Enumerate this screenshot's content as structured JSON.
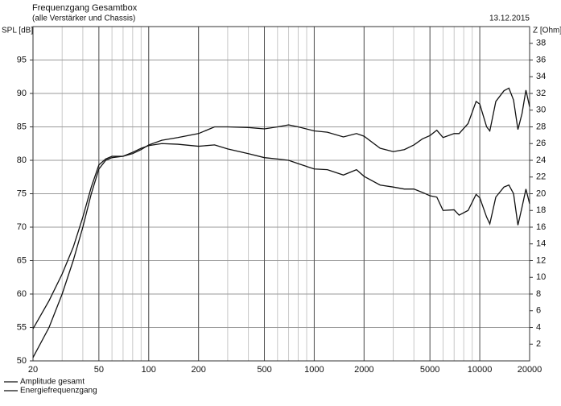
{
  "chart_data": {
    "type": "line",
    "title": "Frequenzgang Gesamtbox",
    "subtitle": "(alle Verstärker und Chassis)",
    "date": "13.12.2015",
    "y_label": "SPL [dB]",
    "y2_label": "Z [Ohm]",
    "x_log": true,
    "grid": true,
    "legend": "bottom-left",
    "x": [
      20,
      25,
      30,
      35,
      40,
      45,
      50,
      55,
      60,
      70,
      80,
      90,
      100,
      120,
      150,
      200,
      250,
      300,
      400,
      500,
      600,
      700,
      800,
      1000,
      1200,
      1500,
      1800,
      2000,
      2500,
      3000,
      3500,
      4000,
      4500,
      5000,
      5500,
      6000,
      7000,
      7500,
      8500,
      9500,
      10000,
      11000,
      11500,
      12500,
      14000,
      15000,
      16000,
      17000,
      18000,
      19000,
      20000
    ],
    "series": [
      {
        "name": "Amplitude gesamt",
        "color": "#111111",
        "values": [
          54.8,
          59,
          63,
          67,
          71.5,
          76,
          79.3,
          80.2,
          80.6,
          80.6,
          81,
          81.6,
          82.3,
          83,
          83.4,
          84,
          85,
          85,
          84.9,
          84.7,
          85,
          85.3,
          85,
          84.4,
          84.2,
          83.5,
          84,
          83.6,
          81.8,
          81.3,
          81.6,
          82.3,
          83.2,
          83.7,
          84.5,
          83.4,
          84,
          84,
          85.5,
          88.8,
          88.4,
          85,
          84.4,
          88.8,
          90.4,
          90.8,
          89,
          84.6,
          87,
          90.5,
          88
        ]
      },
      {
        "name": "Energiefrequenzgang",
        "color": "#111111",
        "values": [
          50.5,
          55,
          60,
          65,
          70,
          75,
          78.7,
          80,
          80.4,
          80.6,
          81.2,
          81.8,
          82.2,
          82.5,
          82.4,
          82.1,
          82.3,
          81.7,
          81,
          80.4,
          80.2,
          80,
          79.5,
          78.7,
          78.6,
          77.8,
          78.6,
          77.6,
          76.3,
          76,
          75.7,
          75.7,
          75.2,
          74.7,
          74.5,
          72.5,
          72.6,
          71.8,
          72.5,
          74.9,
          74.4,
          71.5,
          70.5,
          74.5,
          76,
          76.3,
          75,
          70.3,
          73,
          75.7,
          73.5
        ]
      }
    ],
    "xlim": [
      20,
      20000
    ],
    "xticks": [
      20,
      50,
      100,
      200,
      500,
      1000,
      2000,
      5000,
      10000,
      20000
    ],
    "ylim": [
      50,
      100
    ],
    "yticks": [
      50,
      55,
      60,
      65,
      70,
      75,
      80,
      85,
      90,
      95
    ],
    "y2lim": [
      0,
      40
    ],
    "y2ticks": [
      2,
      4,
      6,
      8,
      10,
      12,
      14,
      16,
      18,
      20,
      22,
      24,
      26,
      28,
      30,
      32,
      34,
      36,
      38
    ]
  }
}
